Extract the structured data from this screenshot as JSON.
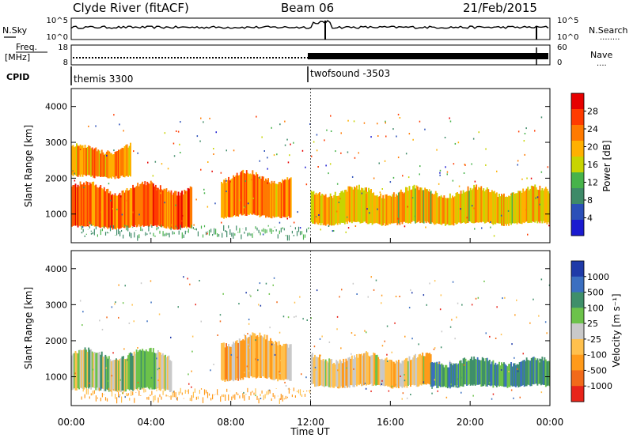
{
  "header": {
    "station": "Clyde River (fitACF)",
    "beam": "Beam 06",
    "date": "21/Feb/2015"
  },
  "sky_panel": {
    "left_label": "N.Sky",
    "left_ticks": [
      "10^5",
      "10^0"
    ],
    "right_ticks": [
      "10^5",
      "10^0"
    ],
    "right_label": "N.Search",
    "right_label_dots": "........"
  },
  "freq_panel": {
    "left_label_1": "Freq.",
    "left_label_2": "[MHz]",
    "left_ticks": [
      "18",
      "8"
    ],
    "right_ticks": [
      "60",
      "0"
    ],
    "right_label": "Nave",
    "right_label_dots": "...."
  },
  "cpid": {
    "label": "CPID",
    "segments": [
      "themis 3300",
      "twofsound -3503"
    ]
  },
  "power_panel": {
    "ylabel": "Slant Range [km]",
    "yticks": [
      "4000",
      "3000",
      "2000",
      "1000"
    ],
    "colorbar_label": "Power [dB]",
    "colorbar_ticks": [
      "28",
      "24",
      "20",
      "16",
      "12",
      "8",
      "4"
    ],
    "colorbar_colors": [
      "#e60000",
      "#ff3b00",
      "#ff7a00",
      "#ffb000",
      "#c8d400",
      "#47b34a",
      "#3e8a68",
      "#2b4fb8",
      "#1b1bd0"
    ]
  },
  "velocity_panel": {
    "ylabel": "Slant Range [km]",
    "yticks": [
      "4000",
      "3000",
      "2000",
      "1000"
    ],
    "colorbar_label": "Velocity [m s⁻¹]",
    "colorbar_ticks": [
      "1000",
      "500",
      "100",
      "25",
      "-25",
      "-100",
      "-500",
      "-1000"
    ],
    "colorbar_colors": [
      "#1f3aa8",
      "#3b6fc0",
      "#3f8f6a",
      "#6cc24a",
      "#c9c9c9",
      "#ffc04d",
      "#ff9a1a",
      "#f26a1a",
      "#e8241a"
    ]
  },
  "xaxis": {
    "ticks": [
      "00:00",
      "04:00",
      "08:00",
      "12:00",
      "16:00",
      "20:00",
      "00:00"
    ],
    "label": "Time UT"
  },
  "chart_data": {
    "type": "heatmap",
    "title": "Clyde River (fitACF)  Beam 06  21/Feb/2015",
    "xlabel": "Time UT",
    "ylabel": "Slant Range [km]",
    "xlim": [
      "00:00",
      "24:00"
    ],
    "ylim": [
      200,
      4500
    ],
    "panels": [
      {
        "name": "Power [dB]",
        "scale": [
          0,
          30
        ],
        "colorbar_ticks": [
          28,
          24,
          20,
          16,
          12,
          8,
          4
        ],
        "regions": [
          {
            "t_start": 0.0,
            "t_end": 6.0,
            "range_low": 600,
            "range_high": 1800,
            "value": 24
          },
          {
            "t_start": 0.0,
            "t_end": 3.0,
            "range_low": 2000,
            "range_high": 2900,
            "value": 20
          },
          {
            "t_start": 7.5,
            "t_end": 11.0,
            "range_low": 900,
            "range_high": 2100,
            "value": 22
          },
          {
            "t_start": 12.0,
            "t_end": 24.0,
            "range_low": 700,
            "range_high": 1700,
            "value": 18
          }
        ]
      },
      {
        "name": "Velocity [m s-1]",
        "scale": [
          -1000,
          1000
        ],
        "colorbar_ticks": [
          1000,
          500,
          100,
          25,
          -25,
          -100,
          -500,
          -1000
        ],
        "regions": [
          {
            "t_start": 0.0,
            "t_end": 5.0,
            "range_low": 600,
            "range_high": 1700,
            "value": 100
          },
          {
            "t_start": 7.5,
            "t_end": 11.0,
            "range_low": 900,
            "range_high": 2100,
            "value": -300
          },
          {
            "t_start": 12.0,
            "t_end": 18.0,
            "range_low": 700,
            "range_high": 1600,
            "value": -200
          },
          {
            "t_start": 18.0,
            "t_end": 24.0,
            "range_low": 700,
            "range_high": 1500,
            "value": 500
          }
        ]
      }
    ],
    "cpid_segments": [
      {
        "name": "themis 3300",
        "t_start": 0.0,
        "t_end": 12.0
      },
      {
        "name": "twofsound -3503",
        "t_start": 12.0,
        "t_end": 24.0
      }
    ]
  }
}
